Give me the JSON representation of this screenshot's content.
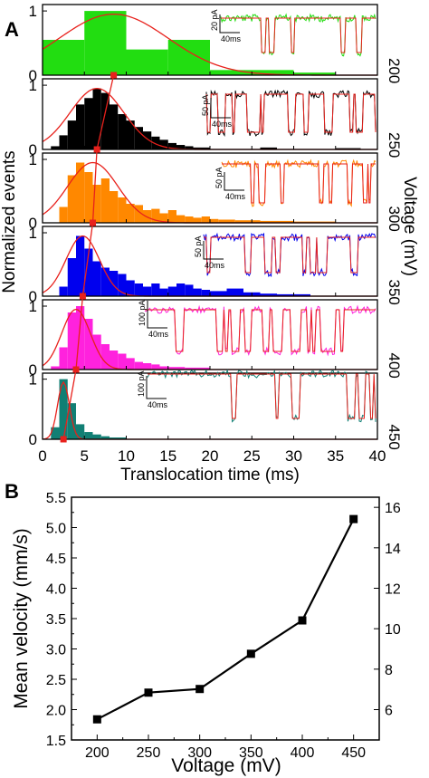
{
  "panel_a": {
    "label": "A",
    "ylabel": "Normalized events",
    "xlabel": "Translocation time (ms)",
    "right_label": "Voltage (mV)",
    "x_ticks": [
      "0",
      "5",
      "10",
      "15",
      "20",
      "25",
      "30",
      "35",
      "40"
    ],
    "y_ticks": [
      "0",
      "1"
    ],
    "inset_time_label": "40ms"
  },
  "panel_b": {
    "label": "B",
    "xlabel": "Voltage (mV)",
    "ylabel": "Mean velocity (mm/s)",
    "x_ticks": [
      "200",
      "250",
      "300",
      "350",
      "400",
      "450"
    ],
    "y_ticks_left": [
      "1.5",
      "2.0",
      "2.5",
      "3.0",
      "3.5",
      "4.0",
      "4.5",
      "5.0",
      "5.5"
    ],
    "y_ticks_right": [
      "6",
      "8",
      "10",
      "12",
      "14",
      "16"
    ]
  },
  "chart_data": [
    {
      "type": "bar",
      "title": "",
      "xlabel": "Translocation time (ms)",
      "ylabel": "Normalized events",
      "xlim": [
        0,
        40
      ],
      "ylim": [
        0,
        1.1
      ],
      "panels": [
        {
          "voltage": "200",
          "color": "#22dd11",
          "scale_bar": "20 pA",
          "peak_ms": 8.5,
          "fit_center": 8.5,
          "fit_width": 6.5,
          "bins": [
            [
              0,
              5,
              0.55
            ],
            [
              5,
              10,
              1.0
            ],
            [
              10,
              15,
              0.4
            ],
            [
              15,
              20,
              0.55
            ],
            [
              20,
              30,
              0.08
            ],
            [
              30,
              35,
              0.04
            ]
          ]
        },
        {
          "voltage": "250",
          "color": "#000000",
          "scale_bar": "50 pA",
          "peak_ms": 6.5,
          "fit_center": 6.5,
          "fit_width": 3.2,
          "bins": [
            [
              1,
              2,
              0.05
            ],
            [
              2,
              3,
              0.22
            ],
            [
              3,
              4,
              0.45
            ],
            [
              4,
              5,
              0.7
            ],
            [
              5,
              6,
              0.8
            ],
            [
              6,
              7,
              0.95
            ],
            [
              7,
              8,
              0.88
            ],
            [
              8,
              9,
              0.7
            ],
            [
              9,
              10,
              0.55
            ],
            [
              10,
              11,
              0.45
            ],
            [
              11,
              12,
              0.35
            ],
            [
              12,
              13,
              0.28
            ],
            [
              13,
              14,
              0.2
            ],
            [
              14,
              15,
              0.15
            ],
            [
              15,
              16,
              0.1
            ],
            [
              16,
              17,
              0.07
            ],
            [
              17,
              18,
              0.05
            ],
            [
              18,
              20,
              0.03
            ],
            [
              26,
              28,
              0.03
            ],
            [
              35,
              38,
              0.02
            ]
          ]
        },
        {
          "voltage": "300",
          "color": "#ff8800",
          "scale_bar": "50 pA",
          "peak_ms": 6.0,
          "fit_center": 6.0,
          "fit_width": 3.0,
          "bins": [
            [
              2,
              3,
              0.25
            ],
            [
              3,
              4,
              0.75
            ],
            [
              4,
              5,
              0.95
            ],
            [
              5,
              6,
              0.8
            ],
            [
              6,
              7,
              0.6
            ],
            [
              7,
              8,
              0.7
            ],
            [
              8,
              9,
              0.5
            ],
            [
              9,
              10,
              0.4
            ],
            [
              10,
              11,
              0.3
            ],
            [
              11,
              12,
              0.28
            ],
            [
              12,
              13,
              0.2
            ],
            [
              13,
              14,
              0.22
            ],
            [
              14,
              15,
              0.15
            ],
            [
              15,
              16,
              0.2
            ],
            [
              16,
              17,
              0.12
            ],
            [
              17,
              18,
              0.1
            ],
            [
              18,
              19,
              0.08
            ],
            [
              19,
              20,
              0.1
            ],
            [
              20,
              21,
              0.06
            ],
            [
              21,
              23,
              0.05
            ],
            [
              23,
              26,
              0.04
            ],
            [
              26,
              30,
              0.03
            ],
            [
              30,
              35,
              0.02
            ]
          ]
        },
        {
          "voltage": "350",
          "color": "#0000ee",
          "scale_bar": "50 pA",
          "peak_ms": 4.8,
          "fit_center": 4.8,
          "fit_width": 2.0,
          "bins": [
            [
              2,
              3,
              0.15
            ],
            [
              3,
              4,
              0.6
            ],
            [
              4,
              5,
              0.95
            ],
            [
              5,
              6,
              0.75
            ],
            [
              6,
              7,
              0.55
            ],
            [
              7,
              8,
              0.45
            ],
            [
              8,
              9,
              0.4
            ],
            [
              9,
              10,
              0.35
            ],
            [
              10,
              11,
              0.25
            ],
            [
              11,
              12,
              0.2
            ],
            [
              12,
              13,
              0.15
            ],
            [
              13,
              14,
              0.2
            ],
            [
              14,
              15,
              0.12
            ],
            [
              15,
              16,
              0.15
            ],
            [
              16,
              17,
              0.2
            ],
            [
              17,
              18,
              0.18
            ],
            [
              18,
              19,
              0.12
            ],
            [
              19,
              20,
              0.1
            ],
            [
              20,
              22,
              0.08
            ],
            [
              22,
              24,
              0.12
            ],
            [
              24,
              26,
              0.06
            ],
            [
              26,
              28,
              0.04
            ],
            [
              28,
              32,
              0.03
            ]
          ]
        },
        {
          "voltage": "400",
          "color": "#ff22dd",
          "scale_bar": "100 pA",
          "peak_ms": 4.0,
          "fit_center": 4.0,
          "fit_width": 1.7,
          "bins": [
            [
              1,
              2,
              0.05
            ],
            [
              2,
              3,
              0.35
            ],
            [
              3,
              4,
              0.9
            ],
            [
              4,
              5,
              1.0
            ],
            [
              5,
              6,
              0.8
            ],
            [
              6,
              7,
              0.55
            ],
            [
              7,
              8,
              0.4
            ],
            [
              8,
              9,
              0.3
            ],
            [
              9,
              10,
              0.25
            ],
            [
              10,
              11,
              0.18
            ],
            [
              11,
              12,
              0.12
            ],
            [
              12,
              13,
              0.1
            ],
            [
              13,
              14,
              0.08
            ],
            [
              14,
              15,
              0.05
            ],
            [
              15,
              17,
              0.04
            ],
            [
              17,
              20,
              0.03
            ]
          ]
        },
        {
          "voltage": "450",
          "color": "#117f74",
          "scale_bar": "100 pA",
          "peak_ms": 2.5,
          "fit_center": 2.5,
          "fit_width": 0.7,
          "bins": [
            [
              1,
              2,
              0.2
            ],
            [
              2,
              3,
              1.0
            ],
            [
              3,
              4,
              0.6
            ],
            [
              4,
              5,
              0.25
            ],
            [
              5,
              6,
              0.12
            ],
            [
              6,
              7,
              0.08
            ],
            [
              7,
              8,
              0.05
            ],
            [
              8,
              10,
              0.03
            ]
          ]
        }
      ]
    },
    {
      "type": "line",
      "title": "",
      "xlabel": "Voltage (mV)",
      "ylabel": "Mean velocity (mm/s)",
      "x": [
        200,
        250,
        300,
        350,
        400,
        450
      ],
      "series": [
        {
          "name": "",
          "values": [
            1.84,
            2.28,
            2.34,
            2.92,
            3.47,
            5.14
          ]
        }
      ],
      "xlim": [
        175,
        475
      ],
      "ylim": [
        1.5,
        5.5
      ],
      "y2lim": [
        4.5,
        16.5
      ]
    }
  ]
}
